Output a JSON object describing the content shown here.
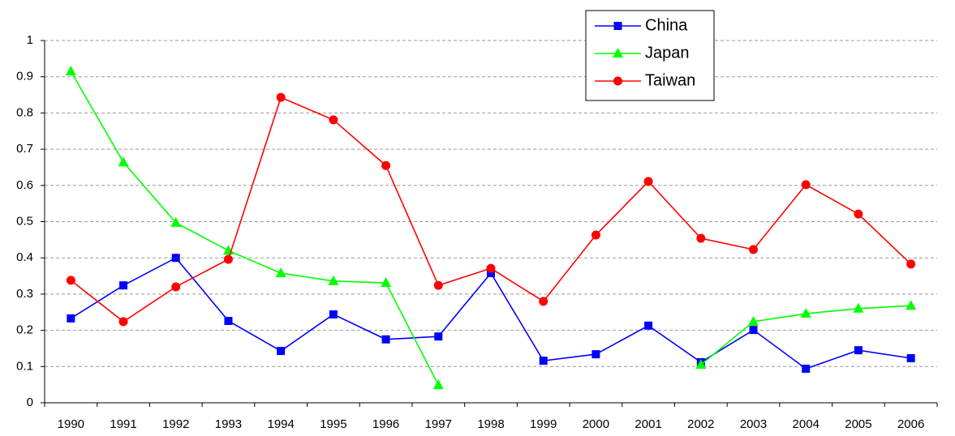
{
  "chart_data": {
    "type": "line",
    "categories": [
      "1990",
      "1991",
      "1992",
      "1993",
      "1994",
      "1995",
      "1996",
      "1997",
      "1998",
      "1999",
      "2000",
      "2001",
      "2002",
      "2003",
      "2004",
      "2005",
      "2006"
    ],
    "series": [
      {
        "name": "China",
        "color": "#0000ff",
        "marker": "square",
        "values": [
          0.233,
          0.324,
          0.4,
          0.226,
          0.143,
          0.244,
          0.175,
          0.183,
          0.358,
          0.116,
          0.134,
          0.213,
          0.112,
          0.201,
          0.094,
          0.145,
          0.123
        ]
      },
      {
        "name": "Japan",
        "color": "#00ff00",
        "marker": "triangle",
        "values": [
          0.915,
          0.664,
          0.497,
          0.42,
          0.358,
          0.336,
          0.331,
          0.049,
          null,
          null,
          null,
          null,
          0.105,
          0.224,
          0.246,
          0.26,
          0.268
        ]
      },
      {
        "name": "Taiwan",
        "color": "#ff0000",
        "marker": "circle",
        "values": [
          0.338,
          0.224,
          0.32,
          0.396,
          0.843,
          0.781,
          0.655,
          0.324,
          0.371,
          0.28,
          0.463,
          0.611,
          0.454,
          0.423,
          0.602,
          0.521,
          0.383
        ]
      }
    ],
    "ylim": [
      0,
      1
    ],
    "yticks": [
      0,
      0.1,
      0.2,
      0.3,
      0.4,
      0.5,
      0.6,
      0.7,
      0.8,
      0.9,
      1
    ],
    "grid": true
  }
}
